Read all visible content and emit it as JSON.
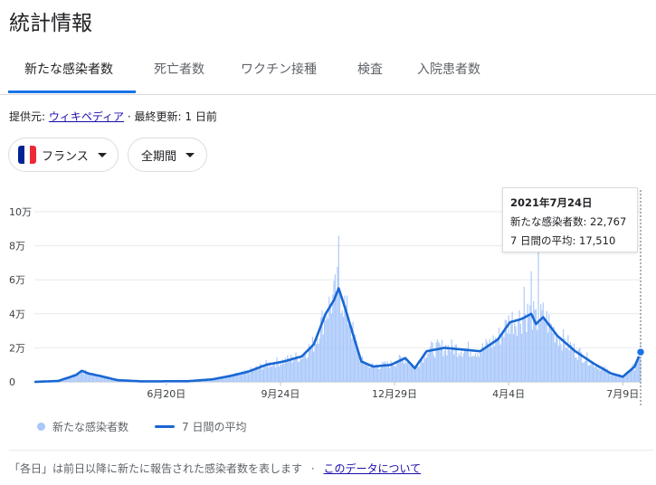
{
  "page_title": "統計情報",
  "tabs": [
    "新たな感染者数",
    "死亡者数",
    "ワクチン接種",
    "検査",
    "入院患者数"
  ],
  "source": {
    "label": "提供元:",
    "link": "ウィキペディア",
    "sep": "·",
    "updated": "最終更新: 1 日前"
  },
  "filters": {
    "country": "フランス",
    "period": "全期間"
  },
  "colors": {
    "accent": "#1a73e8",
    "bars": "#a8c7fa",
    "avg_line": "#1967d2",
    "flag": [
      "#002395",
      "#ffffff",
      "#ed2939"
    ]
  },
  "tooltip": {
    "date": "2021年7月24日",
    "cases_label": "新たな感染者数:",
    "cases_value": "22,767",
    "avg_label": "7 日間の平均:",
    "avg_value": "17,510"
  },
  "legend": {
    "bars": "新たな感染者数",
    "line": "7 日間の平均"
  },
  "footer": {
    "note": "「各日」は前日以降に新たに報告された感染者数を表します",
    "sep": "·",
    "link": "このデータについて"
  },
  "chart_data": {
    "type": "bar",
    "y_tick_labels": [
      "0",
      "2万",
      "4万",
      "6万",
      "8万",
      "10万"
    ],
    "y_ticks": [
      0,
      20000,
      40000,
      60000,
      80000,
      100000
    ],
    "x_tick_labels": [
      "6月20日",
      "9月24日",
      "12月29日",
      "4月4日",
      "7月9日"
    ],
    "x_tick_days": [
      111,
      207,
      303,
      399,
      495
    ],
    "ylim": [
      0,
      100000
    ],
    "x_range_days": [
      0,
      510
    ],
    "series": [
      {
        "name": "新たな感染者数",
        "kind": "bar"
      },
      {
        "name": "7 日間の平均",
        "kind": "line"
      }
    ],
    "avg_keypoints": [
      [
        0,
        0
      ],
      [
        20,
        500
      ],
      [
        35,
        4000
      ],
      [
        40,
        6500
      ],
      [
        45,
        5000
      ],
      [
        55,
        3500
      ],
      [
        70,
        1000
      ],
      [
        90,
        300
      ],
      [
        130,
        400
      ],
      [
        150,
        1500
      ],
      [
        165,
        3500
      ],
      [
        180,
        6000
      ],
      [
        195,
        10000
      ],
      [
        210,
        12000
      ],
      [
        225,
        15000
      ],
      [
        235,
        22000
      ],
      [
        245,
        40000
      ],
      [
        252,
        48000
      ],
      [
        256,
        55000
      ],
      [
        262,
        42000
      ],
      [
        268,
        28000
      ],
      [
        275,
        12000
      ],
      [
        285,
        9000
      ],
      [
        300,
        10000
      ],
      [
        312,
        14000
      ],
      [
        320,
        8000
      ],
      [
        330,
        18000
      ],
      [
        345,
        20000
      ],
      [
        360,
        19000
      ],
      [
        375,
        18000
      ],
      [
        390,
        25000
      ],
      [
        400,
        35000
      ],
      [
        410,
        37000
      ],
      [
        418,
        40000
      ],
      [
        422,
        34000
      ],
      [
        428,
        38000
      ],
      [
        440,
        27000
      ],
      [
        455,
        18000
      ],
      [
        470,
        11000
      ],
      [
        485,
        5000
      ],
      [
        495,
        3000
      ],
      [
        505,
        9000
      ],
      [
        510,
        17510
      ]
    ],
    "highlight": {
      "day": 510,
      "value": 17510
    }
  }
}
